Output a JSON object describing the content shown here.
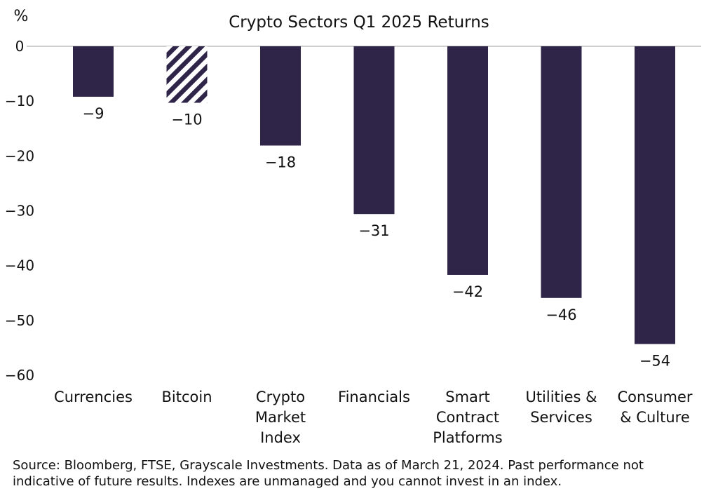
{
  "chart_data": {
    "type": "bar",
    "title": "Crypto Sectors Q1 2025 Returns",
    "ylabel": "%",
    "xlabel": "",
    "ylim": [
      -60,
      0
    ],
    "yticks": [
      0,
      -10,
      -20,
      -30,
      -40,
      -50,
      -60
    ],
    "grid": false,
    "legend": "none",
    "categories": [
      [
        "Currencies"
      ],
      [
        "Bitcoin"
      ],
      [
        "Crypto",
        "Market",
        "Index"
      ],
      [
        "Financials"
      ],
      [
        "Smart",
        "Contract",
        "Platforms"
      ],
      [
        "Utilities &",
        "Services"
      ],
      [
        "Consumer",
        "& Culture"
      ]
    ],
    "values": [
      -9.2,
      -10.3,
      -18.1,
      -30.6,
      -41.7,
      -45.9,
      -54.3
    ],
    "data_labels": [
      "-9",
      "-10",
      "-18",
      "-31",
      "-42",
      "-46",
      "-54"
    ],
    "hatched": [
      false,
      true,
      false,
      false,
      false,
      false,
      false
    ],
    "colors": {
      "bar": "#2e2549",
      "axis": "#bdbdbd"
    }
  },
  "footer": {
    "source": "Source: Bloomberg, FTSE, Grayscale Investments. Data as of March 21, 2024. Past performance not indicative of future results. Indexes are unmanaged and you cannot invest in an index."
  }
}
